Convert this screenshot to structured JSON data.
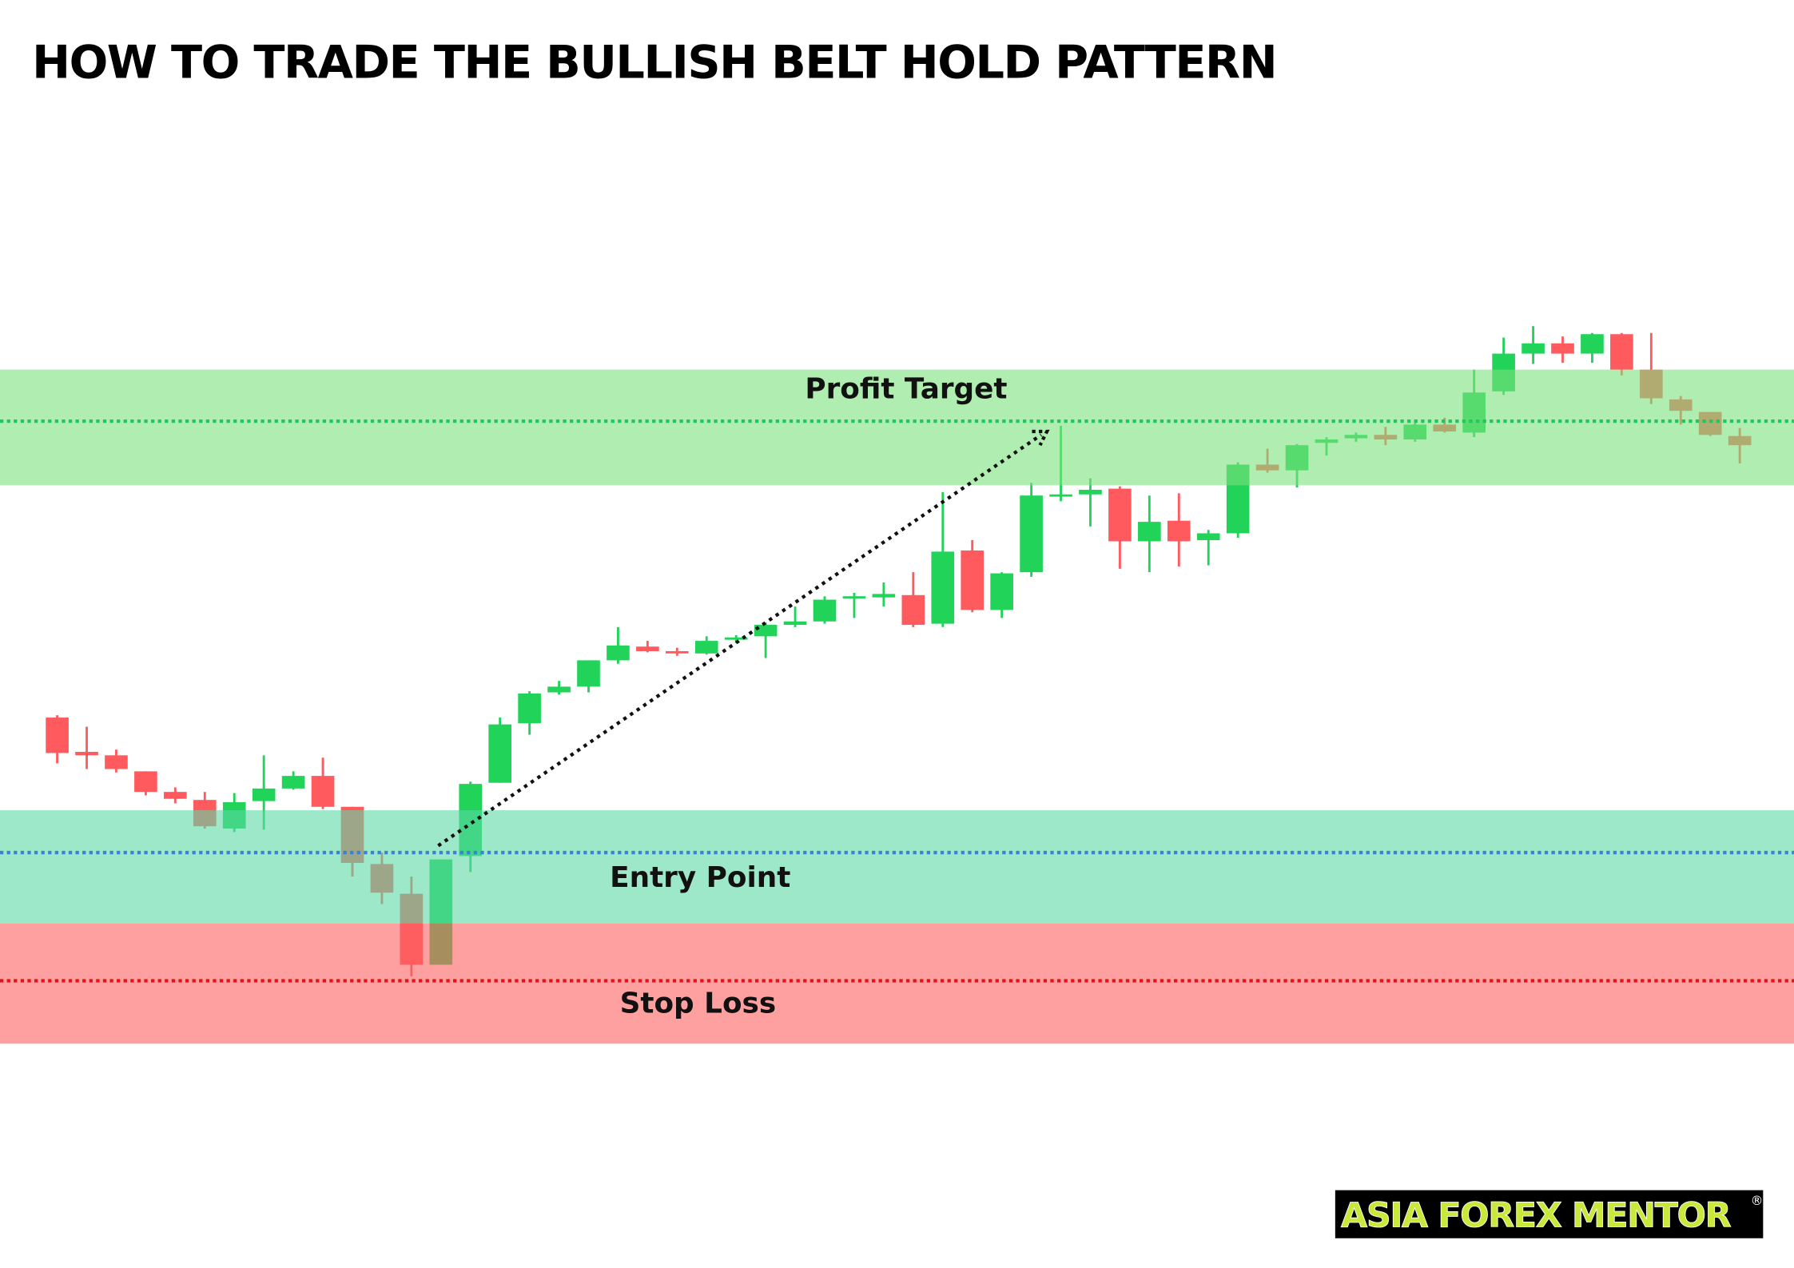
{
  "chart_data": {
    "type": "candlestick",
    "title": "HOW TO TRADE THE BULLISH BELT HOLD PATTERN",
    "up_color": "#22d35a",
    "down_color": "#ff5b5f",
    "ylim": [
      0,
      920
    ],
    "open": [
      293,
      263,
      260,
      246,
      228,
      221,
      196,
      220,
      231,
      242,
      215,
      165,
      139,
      77,
      172,
      236,
      288,
      315,
      320,
      343,
      355,
      351,
      349,
      361,
      364,
      374,
      377,
      397,
      398,
      400,
      375,
      439,
      387,
      420,
      486,
      488,
      493,
      447,
      465,
      448,
      454,
      514,
      509,
      533,
      537,
      540,
      536,
      549,
      542,
      578,
      611,
      620,
      611,
      628,
      597,
      571,
      560,
      539
    ],
    "high": [
      295,
      285,
      265,
      246,
      232,
      228,
      227,
      260,
      246,
      258,
      215,
      175,
      154,
      169,
      237,
      293,
      316,
      325,
      343,
      372,
      360,
      354,
      364,
      365,
      376,
      390,
      399,
      402,
      411,
      420,
      490,
      448,
      420,
      498,
      548,
      502,
      495,
      487,
      489,
      457,
      516,
      528,
      532,
      538,
      542,
      547,
      553,
      555,
      597,
      625,
      635,
      626,
      629,
      629,
      629,
      574,
      560,
      546
    ],
    "low": [
      253,
      248,
      245,
      225,
      218,
      196,
      193,
      195,
      230,
      213,
      154,
      130,
      67,
      77,
      158,
      236,
      278,
      313,
      315,
      340,
      350,
      347,
      348,
      358,
      345,
      372,
      375,
      380,
      390,
      372,
      372,
      385,
      380,
      416,
      482,
      460,
      423,
      420,
      425,
      426,
      450,
      507,
      494,
      522,
      534,
      531,
      534,
      542,
      538,
      575,
      602,
      603,
      603,
      592,
      567,
      549,
      539,
      515
    ],
    "close": [
      262,
      260,
      248,
      228,
      222,
      198,
      219,
      231,
      242,
      215,
      166,
      140,
      77,
      169,
      235,
      287,
      314,
      320,
      343,
      356,
      351,
      349,
      360,
      363,
      374,
      377,
      396,
      399,
      401,
      374,
      438,
      387,
      419,
      487,
      488,
      492,
      447,
      464,
      447,
      454,
      514,
      509,
      531,
      536,
      540,
      536,
      549,
      543,
      577,
      611,
      620,
      611,
      628,
      597,
      572,
      561,
      540,
      531
    ],
    "zones": [
      {
        "label": "Profit Target",
        "low": 496,
        "high": 597,
        "level": 552,
        "color": "#7be17b",
        "line_color": "#22c55e"
      },
      {
        "label": "Entry Point",
        "low": 113,
        "high": 212,
        "level": 175,
        "color": "#5cd9a5",
        "line_color": "#3b82d6"
      },
      {
        "label": "Stop Loss",
        "low": 8,
        "high": 113,
        "level": 63,
        "color": "#ff6161",
        "line_color": "#e3121b"
      }
    ]
  },
  "logo": {
    "text": "ASIA FOREX MENTOR",
    "mark": "®"
  }
}
